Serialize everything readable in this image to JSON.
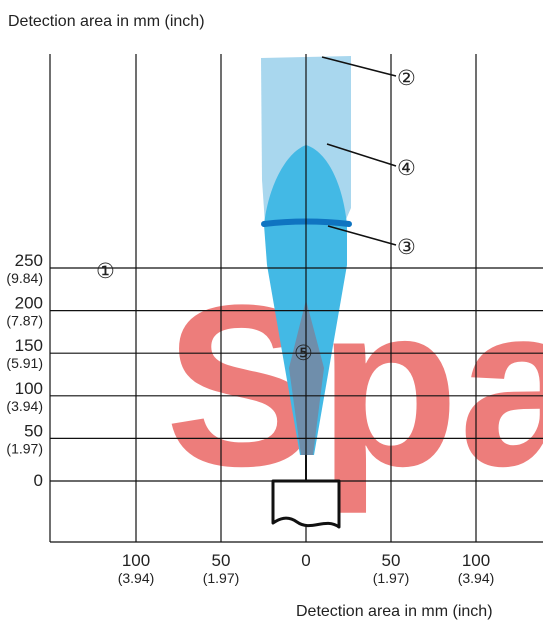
{
  "axis_titles": {
    "y_title": "Detection area in mm (inch)",
    "x_title": "Detection area in mm (inch)"
  },
  "y_ticks": [
    {
      "mm": "250",
      "inch": "(9.84)",
      "value": 250
    },
    {
      "mm": "200",
      "inch": "(7.87)",
      "value": 200
    },
    {
      "mm": "150",
      "inch": "(5.91)",
      "value": 150
    },
    {
      "mm": "100",
      "inch": "(3.94)",
      "value": 100
    },
    {
      "mm": "50",
      "inch": "(1.97)",
      "value": 50
    },
    {
      "mm": "0",
      "inch": "",
      "value": 0
    }
  ],
  "x_ticks": [
    {
      "mm": "100",
      "inch": "(3.94)",
      "value": -100
    },
    {
      "mm": "50",
      "inch": "(1.97)",
      "value": -50
    },
    {
      "mm": "0",
      "inch": "",
      "value": 0
    },
    {
      "mm": "50",
      "inch": "(1.97)",
      "value": 50
    },
    {
      "mm": "100",
      "inch": "(3.94)",
      "value": 100
    }
  ],
  "callouts": {
    "c1": "①",
    "c2": "②",
    "c3": "③",
    "c4": "④",
    "c5": "⑤"
  },
  "watermark": "Spa",
  "colors": {
    "outer_zone": "#a9d7ee",
    "inner_zone": "#43b9e5",
    "focus_band": "#0f74c1",
    "axis_zone": "#6f8eab",
    "grid": "#111111",
    "watermark": "#e8524f"
  }
}
